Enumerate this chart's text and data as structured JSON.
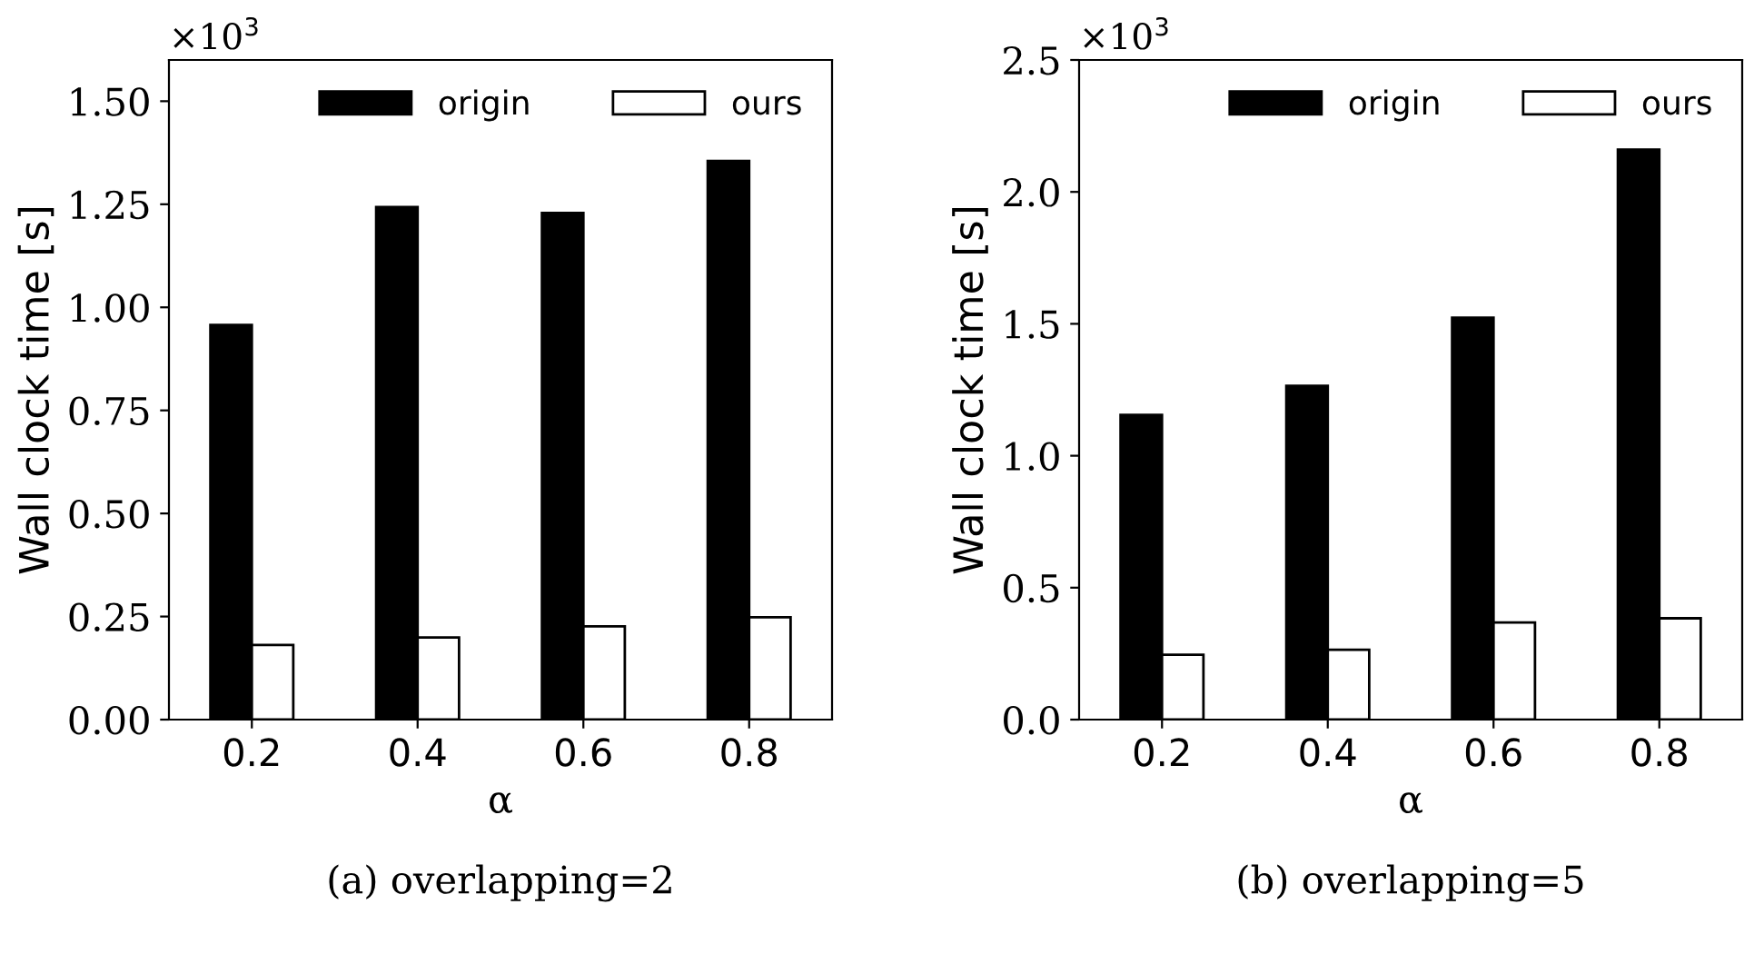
{
  "chart_data": [
    {
      "type": "bar",
      "categories": [
        "0.2",
        "0.4",
        "0.6",
        "0.8"
      ],
      "xlabel": "α",
      "ylabel": "Wall clock time [s]",
      "series": [
        {
          "name": "origin",
          "color": "#000000",
          "values": [
            0.957,
            1.243,
            1.229,
            1.355
          ]
        },
        {
          "name": "ours",
          "color": "#ffffff",
          "values": [
            0.181,
            0.199,
            0.226,
            0.248
          ]
        }
      ],
      "ylim": [
        0,
        1.6
      ],
      "yticks": [
        {
          "value": 0,
          "label": "0.00"
        },
        {
          "value": 0.25,
          "label": "0.25"
        },
        {
          "value": 0.5,
          "label": "0.50"
        },
        {
          "value": 0.75,
          "label": "0.75"
        },
        {
          "value": 1.0,
          "label": "1.00"
        },
        {
          "value": 1.25,
          "label": "1.25"
        },
        {
          "value": 1.5,
          "label": "1.50"
        }
      ],
      "legend": "top right",
      "grid": false,
      "annotations": [
        "×10$^{3}$",
        "(a) overlapping=2"
      ]
    },
    {
      "type": "bar",
      "categories": [
        "0.2",
        "0.4",
        "0.6",
        "0.8"
      ],
      "xlabel": "α",
      "ylabel": "Wall clock time [s]",
      "series": [
        {
          "name": "origin",
          "color": "#000000",
          "values": [
            1.155,
            1.265,
            1.523,
            2.16
          ]
        },
        {
          "name": "ours",
          "color": "#ffffff",
          "values": [
            0.246,
            0.265,
            0.368,
            0.384
          ]
        }
      ],
      "ylim": [
        0,
        2.5
      ],
      "yticks": [
        {
          "value": 0,
          "label": "0.0"
        },
        {
          "value": 0.5,
          "label": "0.5"
        },
        {
          "value": 1.0,
          "label": "1.0"
        },
        {
          "value": 1.5,
          "label": "1.5"
        },
        {
          "value": 2.0,
          "label": "2.0"
        },
        {
          "value": 2.5,
          "label": "2.5"
        }
      ],
      "legend": "top right",
      "grid": false,
      "annotations": [
        "×10$^{3}$",
        "(b) overlapping=5"
      ]
    }
  ]
}
